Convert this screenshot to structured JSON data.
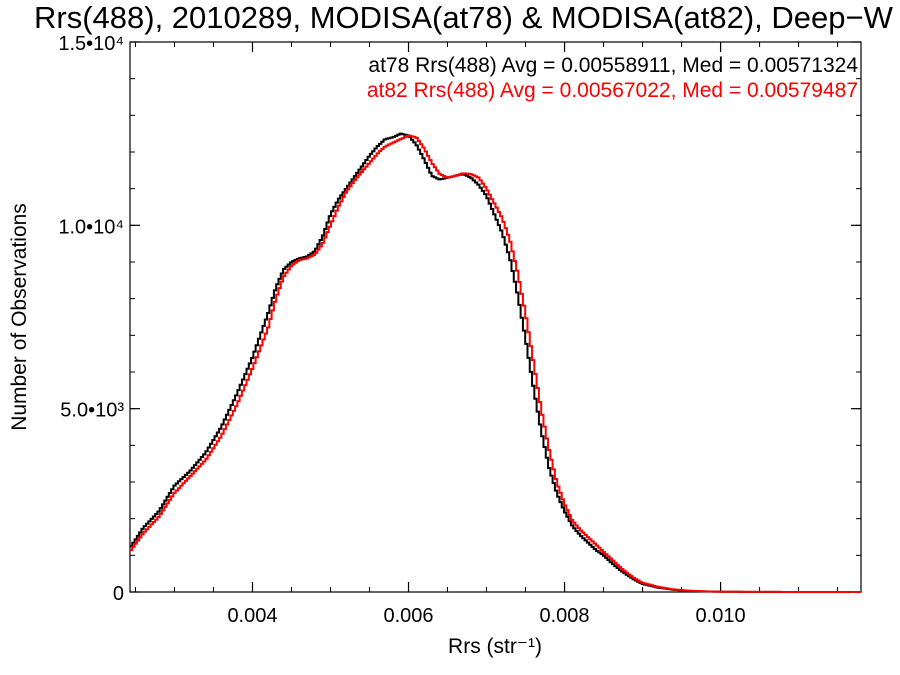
{
  "chart_data": {
    "type": "line",
    "title": "Rrs(488), 2010289, MODISA(at78) & MODISA(at82), Deep−W",
    "xlabel": "Rrs (str⁻¹)",
    "ylabel": "Number of Observations",
    "xlim": [
      0.00243,
      0.0118
    ],
    "ylim": [
      0,
      15000
    ],
    "xticks": [
      {
        "value": 0.004,
        "label": "0.004"
      },
      {
        "value": 0.006,
        "label": "0.006"
      },
      {
        "value": 0.008,
        "label": "0.008"
      },
      {
        "value": 0.01,
        "label": "0.010"
      }
    ],
    "yticks": [
      {
        "value": 0,
        "label": "0"
      },
      {
        "value": 5000,
        "label": "5.0•10³"
      },
      {
        "value": 10000,
        "label": "1.0•10⁴"
      },
      {
        "value": 15000,
        "label": "1.5•10⁴"
      }
    ],
    "grid": false,
    "legend_position": "top-right",
    "annotations": [
      {
        "text": "at78 Rrs(488) Avg = 0.00558911, Med = 0.00571324",
        "color": "#000000"
      },
      {
        "text": "at82 Rrs(488) Avg = 0.00567022, Med = 0.00579487",
        "color": "#ff0000"
      }
    ],
    "series": [
      {
        "color": "#000000",
        "x": [
          0.00243,
          0.0026,
          0.0028,
          0.003,
          0.0032,
          0.0034,
          0.0036,
          0.0038,
          0.004,
          0.0042,
          0.0043,
          0.0044,
          0.0045,
          0.0046,
          0.0047,
          0.0048,
          0.0049,
          0.005,
          0.0051,
          0.0052,
          0.0053,
          0.0054,
          0.0055,
          0.0056,
          0.0057,
          0.0058,
          0.0059,
          0.006,
          0.0061,
          0.0062,
          0.0063,
          0.0064,
          0.0065,
          0.0066,
          0.0067,
          0.0068,
          0.0069,
          0.007,
          0.0071,
          0.0072,
          0.0073,
          0.0074,
          0.0075,
          0.0076,
          0.0077,
          0.0078,
          0.0079,
          0.008,
          0.0081,
          0.0082,
          0.0083,
          0.0084,
          0.0085,
          0.0086,
          0.0087,
          0.0088,
          0.0089,
          0.009,
          0.0092,
          0.0094,
          0.0096,
          0.0098,
          0.01,
          0.0104,
          0.011,
          0.0118
        ],
        "y": [
          1200,
          1750,
          2200,
          2900,
          3300,
          3800,
          4500,
          5400,
          6400,
          7600,
          8300,
          8800,
          9000,
          9100,
          9150,
          9300,
          9700,
          10300,
          10700,
          11000,
          11300,
          11600,
          11900,
          12150,
          12350,
          12400,
          12500,
          12450,
          12200,
          11800,
          11350,
          11250,
          11300,
          11350,
          11400,
          11300,
          11100,
          10800,
          10300,
          9800,
          9100,
          8100,
          6900,
          5600,
          4400,
          3400,
          2700,
          2200,
          1800,
          1550,
          1350,
          1150,
          1000,
          800,
          620,
          470,
          330,
          220,
          120,
          60,
          30,
          15,
          8,
          3,
          1,
          0
        ]
      },
      {
        "color": "#ff0000",
        "x": [
          0.00243,
          0.0026,
          0.0028,
          0.003,
          0.0032,
          0.0034,
          0.0036,
          0.0038,
          0.004,
          0.0042,
          0.0043,
          0.0044,
          0.0045,
          0.0046,
          0.0047,
          0.0048,
          0.0049,
          0.005,
          0.0051,
          0.0052,
          0.0053,
          0.0054,
          0.0055,
          0.0056,
          0.0057,
          0.0058,
          0.0059,
          0.006,
          0.0061,
          0.0062,
          0.0063,
          0.0064,
          0.0065,
          0.0066,
          0.0067,
          0.0068,
          0.0069,
          0.007,
          0.0071,
          0.0072,
          0.0073,
          0.0074,
          0.0075,
          0.0076,
          0.0077,
          0.0078,
          0.0079,
          0.008,
          0.0081,
          0.0082,
          0.0083,
          0.0084,
          0.0085,
          0.0086,
          0.0087,
          0.0088,
          0.0089,
          0.009,
          0.0092,
          0.0094,
          0.0096,
          0.0098,
          0.01,
          0.0104,
          0.011,
          0.0118
        ],
        "y": [
          1100,
          1600,
          2050,
          2700,
          3150,
          3600,
          4250,
          5100,
          6100,
          7200,
          8000,
          8600,
          8900,
          9050,
          9100,
          9200,
          9500,
          10000,
          10500,
          10900,
          11200,
          11450,
          11700,
          11950,
          12150,
          12250,
          12350,
          12450,
          12400,
          12100,
          11700,
          11400,
          11300,
          11350,
          11420,
          11400,
          11300,
          11000,
          10600,
          10200,
          9600,
          8700,
          7600,
          6300,
          5000,
          3900,
          3000,
          2400,
          1950,
          1700,
          1500,
          1300,
          1100,
          900,
          700,
          520,
          370,
          250,
          140,
          70,
          35,
          18,
          9,
          3,
          1,
          0
        ]
      }
    ]
  }
}
